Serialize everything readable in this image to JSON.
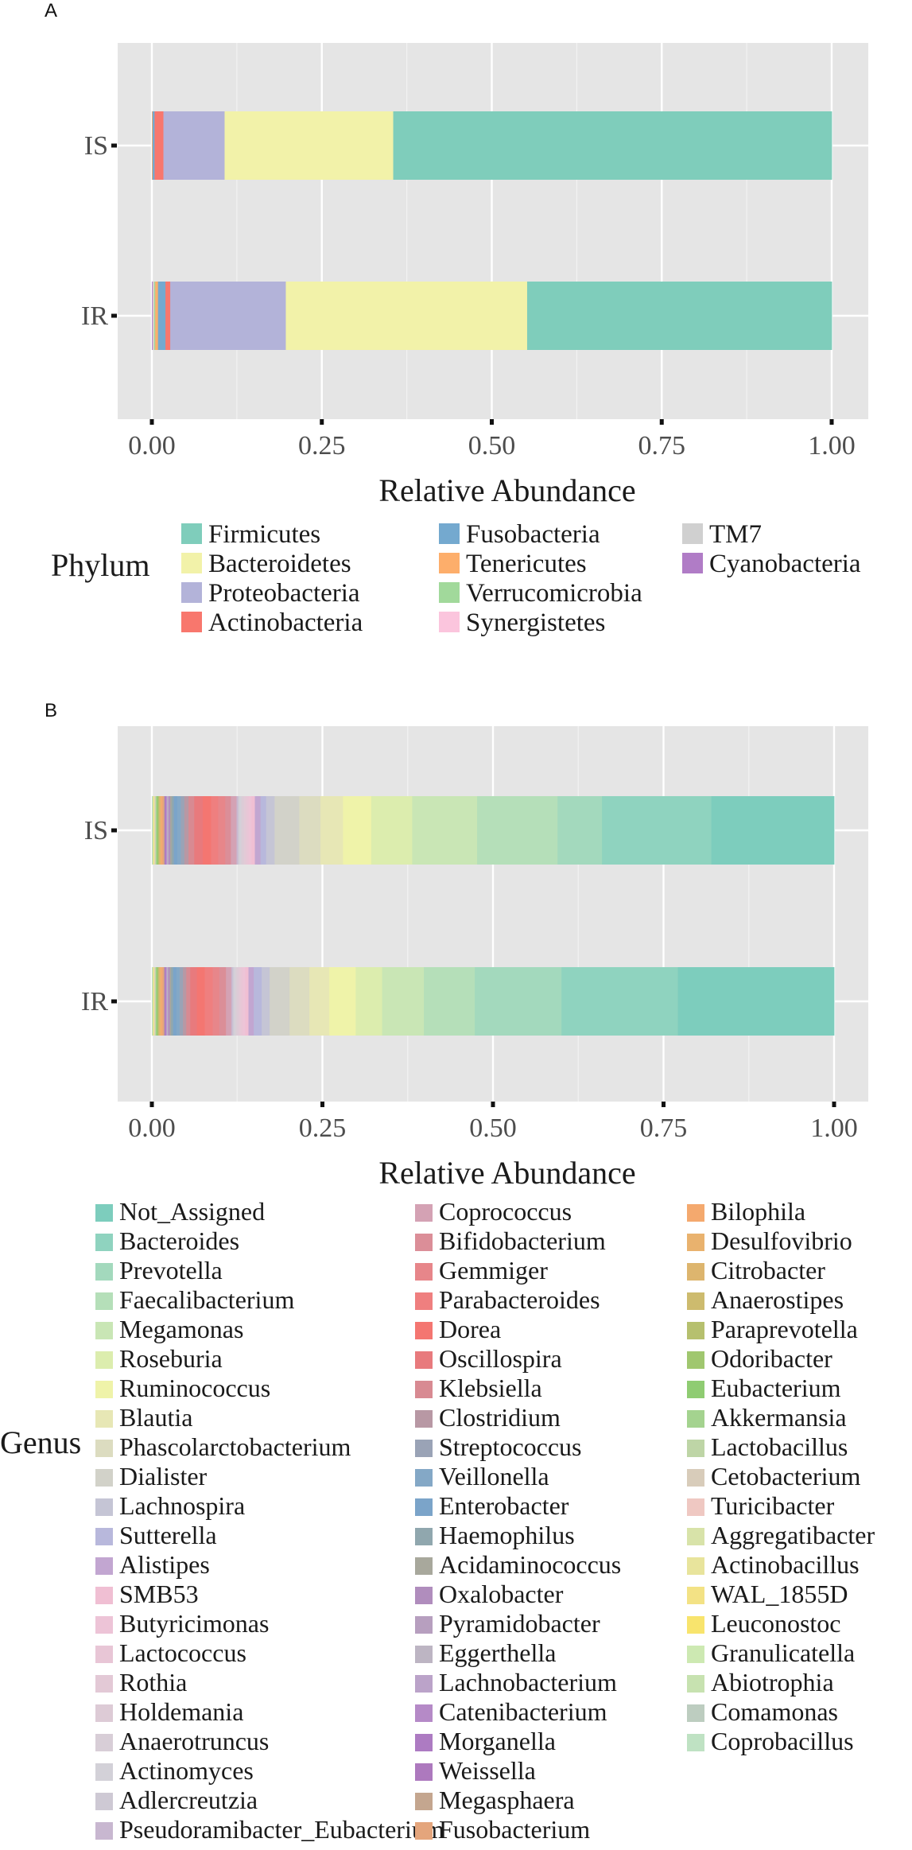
{
  "chart_data": [
    {
      "panel": "A",
      "type": "bar",
      "orientation": "horizontal",
      "stacked": true,
      "categories": [
        "IS",
        "IR"
      ],
      "xlabel": "Relative Abundance",
      "ylabel": "",
      "xlim": [
        0,
        1
      ],
      "x_ticks": [
        "0.00",
        "0.25",
        "0.50",
        "0.75",
        "1.00"
      ],
      "grid": true,
      "legend_title": "Phylum",
      "legend_placement": "bottom",
      "series": [
        {
          "name": "Firmicutes",
          "color": "#7fcdbb",
          "values": [
            0.645,
            0.448
          ]
        },
        {
          "name": "Bacteroidetes",
          "color": "#f2f2a9",
          "values": [
            0.248,
            0.355
          ]
        },
        {
          "name": "Proteobacteria",
          "color": "#b3b3d9",
          "values": [
            0.09,
            0.17
          ]
        },
        {
          "name": "Actinobacteria",
          "color": "#f8776d",
          "values": [
            0.013,
            0.007
          ]
        },
        {
          "name": "Fusobacteria",
          "color": "#74a9cf",
          "values": [
            0.003,
            0.011
          ]
        },
        {
          "name": "Tenericutes",
          "color": "#fdae6b",
          "values": [
            0.001,
            0.004
          ]
        },
        {
          "name": "Verrucomicrobia",
          "color": "#a1d99b",
          "values": [
            0.0,
            0.002
          ]
        },
        {
          "name": "Synergistetes",
          "color": "#fbc5dd",
          "values": [
            0.0,
            0.001
          ]
        },
        {
          "name": "TM7",
          "color": "#d0d0d0",
          "values": [
            0.0,
            0.001
          ]
        },
        {
          "name": "Cyanobacteria",
          "color": "#b07cc6",
          "values": [
            0.0,
            0.001
          ]
        }
      ]
    },
    {
      "panel": "B",
      "type": "bar",
      "orientation": "horizontal",
      "stacked": true,
      "categories": [
        "IS",
        "IR"
      ],
      "xlabel": "Relative Abundance",
      "ylabel": "",
      "xlim": [
        0,
        1
      ],
      "x_ticks": [
        "0.00",
        "0.25",
        "0.50",
        "0.75",
        "1.00"
      ],
      "grid": true,
      "legend_title": "Genus",
      "legend_placement": "bottom",
      "series": [
        {
          "name": "Not_Assigned",
          "color": "#7dcdbd",
          "values": [
            0.174,
            0.236
          ]
        },
        {
          "name": "Bacteroides",
          "color": "#8fd3bf",
          "values": [
            0.155,
            0.176
          ]
        },
        {
          "name": "Prevotella",
          "color": "#a3d9bd",
          "values": [
            0.063,
            0.131
          ]
        },
        {
          "name": "Faecalibacterium",
          "color": "#b5dfb9",
          "values": [
            0.114,
            0.077
          ]
        },
        {
          "name": "Megamonas",
          "color": "#c9e6b5",
          "values": [
            0.092,
            0.063
          ]
        },
        {
          "name": "Roseburia",
          "color": "#dcedae",
          "values": [
            0.058,
            0.04
          ]
        },
        {
          "name": "Ruminococcus",
          "color": "#eff3a9",
          "values": [
            0.04,
            0.04
          ]
        },
        {
          "name": "Blautia",
          "color": "#e7e7b5",
          "values": [
            0.032,
            0.03
          ]
        },
        {
          "name": "Phascolarctobacterium",
          "color": "#dcdcc0",
          "values": [
            0.03,
            0.03
          ]
        },
        {
          "name": "Dialister",
          "color": "#d2d2c9",
          "values": [
            0.035,
            0.03
          ]
        },
        {
          "name": "Lachnospira",
          "color": "#c5c5d5",
          "values": [
            0.012,
            0.012
          ]
        },
        {
          "name": "Sutterella",
          "color": "#b8b8dc",
          "values": [
            0.008,
            0.012
          ]
        },
        {
          "name": "Alistipes",
          "color": "#c2a6d1",
          "values": [
            0.008,
            0.008
          ]
        },
        {
          "name": "SMB53",
          "color": "#f0bfd3",
          "values": [
            0.005,
            0.005
          ]
        },
        {
          "name": "Butyricimonas",
          "color": "#edc4d7",
          "values": [
            0.004,
            0.004
          ]
        },
        {
          "name": "Lactococcus",
          "color": "#e8c6d6",
          "values": [
            0.003,
            0.003
          ]
        },
        {
          "name": "Rothia",
          "color": "#e3c9d6",
          "values": [
            0.003,
            0.003
          ]
        },
        {
          "name": "Holdemania",
          "color": "#ddcbd6",
          "values": [
            0.003,
            0.003
          ]
        },
        {
          "name": "Anaerotruncus",
          "color": "#d8ced7",
          "values": [
            0.002,
            0.002
          ]
        },
        {
          "name": "Actinomyces",
          "color": "#d3d1d8",
          "values": [
            0.002,
            0.002
          ]
        },
        {
          "name": "Adlercreutzia",
          "color": "#cec9d4",
          "values": [
            0.002,
            0.002
          ]
        },
        {
          "name": "Pseudoramibacter_Eubacterium",
          "color": "#c8b7d0",
          "values": [
            0.002,
            0.002
          ]
        },
        {
          "name": "Coprococcus",
          "color": "#d4a2b4",
          "values": [
            0.008,
            0.008
          ]
        },
        {
          "name": "Bifidobacterium",
          "color": "#db8e98",
          "values": [
            0.008,
            0.01
          ]
        },
        {
          "name": "Gemmiger",
          "color": "#e7868a",
          "values": [
            0.01,
            0.01
          ]
        },
        {
          "name": "Parabacteroides",
          "color": "#ef7f7f",
          "values": [
            0.01,
            0.012
          ]
        },
        {
          "name": "Dorea",
          "color": "#f47671",
          "values": [
            0.012,
            0.012
          ]
        },
        {
          "name": "Oscillospira",
          "color": "#e87a7d",
          "values": [
            0.012,
            0.01
          ]
        },
        {
          "name": "Klebsiella",
          "color": "#d88a92",
          "values": [
            0.008,
            0.006
          ]
        },
        {
          "name": "Clostridium",
          "color": "#b898a4",
          "values": [
            0.006,
            0.005
          ]
        },
        {
          "name": "Streptococcus",
          "color": "#9aa3b6",
          "values": [
            0.005,
            0.005
          ]
        },
        {
          "name": "Veillonella",
          "color": "#84a8c6",
          "values": [
            0.005,
            0.005
          ]
        },
        {
          "name": "Enterobacter",
          "color": "#7ba4c9",
          "values": [
            0.005,
            0.005
          ]
        },
        {
          "name": "Haemophilus",
          "color": "#90a7ae",
          "values": [
            0.003,
            0.003
          ]
        },
        {
          "name": "Acidaminococcus",
          "color": "#a8a89c",
          "values": [
            0.002,
            0.002
          ]
        },
        {
          "name": "Oxalobacter",
          "color": "#b08dbd",
          "values": [
            0.002,
            0.002
          ]
        },
        {
          "name": "Pyramidobacter",
          "color": "#b79fbf",
          "values": [
            0.001,
            0.001
          ]
        },
        {
          "name": "Eggerthella",
          "color": "#bdb5c3",
          "values": [
            0.001,
            0.001
          ]
        },
        {
          "name": "Lachnobacterium",
          "color": "#bba3c9",
          "values": [
            0.001,
            0.001
          ]
        },
        {
          "name": "Catenibacterium",
          "color": "#b58ac7",
          "values": [
            0.001,
            0.001
          ]
        },
        {
          "name": "Morganella",
          "color": "#ad7bc2",
          "values": [
            0.001,
            0.001
          ]
        },
        {
          "name": "Weissella",
          "color": "#ad79be",
          "values": [
            0.001,
            0.001
          ]
        },
        {
          "name": "Megasphaera",
          "color": "#c4a68f",
          "values": [
            0.001,
            0.001
          ]
        },
        {
          "name": "Fusobacterium",
          "color": "#e4a57c",
          "values": [
            0.002,
            0.002
          ]
        },
        {
          "name": "Bilophila",
          "color": "#f4a96e",
          "values": [
            0.002,
            0.002
          ]
        },
        {
          "name": "Desulfovibrio",
          "color": "#e9b26e",
          "values": [
            0.001,
            0.002
          ]
        },
        {
          "name": "Citrobacter",
          "color": "#ddb56e",
          "values": [
            0.001,
            0.001
          ]
        },
        {
          "name": "Anaerostipes",
          "color": "#cdbb6e",
          "values": [
            0.001,
            0.001
          ]
        },
        {
          "name": "Paraprevotella",
          "color": "#b6c06e",
          "values": [
            0.001,
            0.001
          ]
        },
        {
          "name": "Odoribacter",
          "color": "#a0c76f",
          "values": [
            0.001,
            0.001
          ]
        },
        {
          "name": "Eubacterium",
          "color": "#8fcc72",
          "values": [
            0.001,
            0.001
          ]
        },
        {
          "name": "Akkermansia",
          "color": "#a4d38f",
          "values": [
            0.001,
            0.001
          ]
        },
        {
          "name": "Lactobacillus",
          "color": "#bed5a6",
          "values": [
            0.001,
            0.001
          ]
        },
        {
          "name": "Cetobacterium",
          "color": "#d8ccba",
          "values": [
            0.0005,
            0.0005
          ]
        },
        {
          "name": "Turicibacter",
          "color": "#efc8c2",
          "values": [
            0.0005,
            0.0005
          ]
        },
        {
          "name": "Aggregatibacter",
          "color": "#d8e3a9",
          "values": [
            0.0005,
            0.0005
          ]
        },
        {
          "name": "Actinobacillus",
          "color": "#e8e49c",
          "values": [
            0.0005,
            0.0005
          ]
        },
        {
          "name": "WAL_1855D",
          "color": "#f3e285",
          "values": [
            0.0005,
            0.0005
          ]
        },
        {
          "name": "Leuconostoc",
          "color": "#f8e46d",
          "values": [
            0.0005,
            0.0005
          ]
        },
        {
          "name": "Granulicatella",
          "color": "#cde9b2",
          "values": [
            0.0005,
            0.0005
          ]
        },
        {
          "name": "Abiotrophia",
          "color": "#c7e2b0",
          "values": [
            0.0005,
            0.0005
          ]
        },
        {
          "name": "Comamonas",
          "color": "#bdcdc0",
          "values": [
            0.0005,
            0.0005
          ]
        },
        {
          "name": "Coprobacillus",
          "color": "#bfe2c3",
          "values": [
            0.0005,
            0.0005
          ]
        }
      ]
    }
  ]
}
